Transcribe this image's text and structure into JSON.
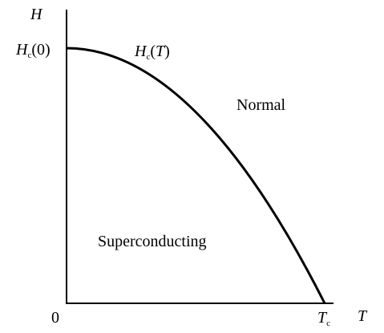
{
  "axes": {
    "y_label": "H",
    "x_label": "T",
    "origin": "0"
  },
  "labels": {
    "hc0": {
      "symbol": "H",
      "subscript": "c",
      "argument": "(0)"
    },
    "hct": {
      "symbol": "H",
      "subscript": "c",
      "argument_open": "(",
      "argument": "T",
      "argument_close": ")"
    },
    "tc": {
      "symbol": "T",
      "subscript": "c"
    }
  },
  "regions": {
    "normal": "Normal",
    "superconducting": "Superconducting"
  }
}
